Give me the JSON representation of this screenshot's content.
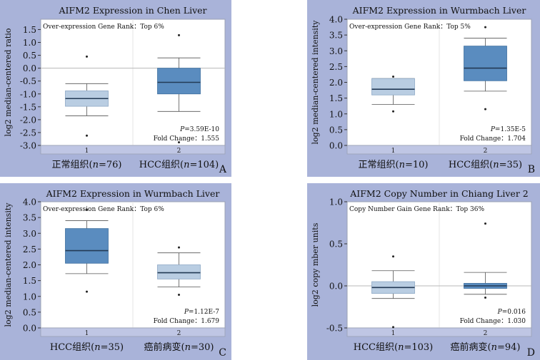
{
  "figure": {
    "colors": {
      "panel_bg": "#a9b3d9",
      "plot_bg": "#ffffff",
      "frame": "#9aa0b4",
      "axis_band": "#bfc6e4",
      "box_light": "#b9cde2",
      "box_dark": "#5a8cbf",
      "median": "#233a55",
      "zero_line": "#b8b8b8"
    }
  },
  "chart_data": [
    {
      "panel_letter": "A",
      "type": "box",
      "title": "AIFM2 Expression in Chen Liver",
      "annotation": "Over-expression Gene Rank：Top 6%",
      "ylabel": "log2 median-centered ratio",
      "ylim": [
        -3.0,
        1.9
      ],
      "yticks": [
        -3.0,
        -2.5,
        -2.0,
        -1.5,
        -1.0,
        -0.5,
        0.0,
        0.5,
        1.0,
        1.5
      ],
      "ytick_labels": [
        "-3.0",
        "-2.5",
        "-2.0",
        "-1.5",
        "-1.0",
        "-0.5",
        "0.0",
        "0.5",
        "1.0",
        "1.5"
      ],
      "zero_line": true,
      "p_text": "P=3.59E-10",
      "fold_text": "Fold Change：1.555",
      "categories": [
        {
          "index_label": "1",
          "label": "正常组织(n=76)",
          "tone": "light",
          "whisker_low": -1.85,
          "q1": -1.48,
          "median": -1.18,
          "q3": -0.88,
          "whisker_high": -0.6,
          "outliers": [
            0.45,
            -2.62
          ]
        },
        {
          "index_label": "2",
          "label": "HCC组织(n=104)",
          "tone": "dark",
          "whisker_low": -1.68,
          "q1": -1.0,
          "median": -0.55,
          "q3": 0.0,
          "whisker_high": 0.4,
          "outliers": [
            1.28,
            -2.88
          ]
        }
      ]
    },
    {
      "panel_letter": "B",
      "type": "box",
      "title": "AIFM2 Expression in Wurmbach Liver",
      "annotation": "Over-expression Gene Rank：Top 5%",
      "ylabel": "log2 median-centered intensity",
      "ylim": [
        0.0,
        4.0
      ],
      "yticks": [
        0.0,
        0.5,
        1.0,
        1.5,
        2.0,
        2.5,
        3.0,
        3.5,
        4.0
      ],
      "ytick_labels": [
        "0.0",
        "0.5",
        "1.0",
        "1.5",
        "2.0",
        "2.5",
        "3.0",
        "3.5",
        "4.0"
      ],
      "zero_line": false,
      "p_text": "P=1.35E-5",
      "fold_text": "Fold Change：1.704",
      "categories": [
        {
          "index_label": "1",
          "label": "正常组织(n=10)",
          "tone": "light",
          "whisker_low": 1.3,
          "q1": 1.6,
          "median": 1.78,
          "q3": 2.12,
          "whisker_high": 2.12,
          "outliers": [
            2.18,
            1.08
          ]
        },
        {
          "index_label": "2",
          "label": "HCC组织(n=35)",
          "tone": "dark",
          "whisker_low": 1.72,
          "q1": 2.05,
          "median": 2.45,
          "q3": 3.15,
          "whisker_high": 3.4,
          "outliers": [
            3.75,
            1.15
          ]
        }
      ]
    },
    {
      "panel_letter": "C",
      "type": "box",
      "title": "AIFM2 Expression in Wurmbach Liver",
      "annotation": "Over-expression Gene Rank：Top 6%",
      "ylabel": "log2 median-centered intensity",
      "ylim": [
        0.0,
        4.0
      ],
      "yticks": [
        0.0,
        0.5,
        1.0,
        1.5,
        2.0,
        2.5,
        3.0,
        3.5,
        4.0
      ],
      "ytick_labels": [
        "0.0",
        "0.5",
        "1.0",
        "1.5",
        "2.0",
        "2.5",
        "3.0",
        "3.5",
        "4.0"
      ],
      "zero_line": false,
      "p_text": "P=1.12E-7",
      "fold_text": "Fold Change：1.679",
      "categories": [
        {
          "index_label": "1",
          "label": "HCC组织(n=35)",
          "tone": "dark",
          "whisker_low": 1.72,
          "q1": 2.05,
          "median": 2.45,
          "q3": 3.15,
          "whisker_high": 3.4,
          "outliers": [
            3.75,
            1.15
          ]
        },
        {
          "index_label": "2",
          "label": "癌前病变(n=30)",
          "tone": "light",
          "whisker_low": 1.3,
          "q1": 1.55,
          "median": 1.75,
          "q3": 2.0,
          "whisker_high": 2.38,
          "outliers": [
            2.55,
            1.05
          ]
        }
      ]
    },
    {
      "panel_letter": "D",
      "type": "box",
      "title": "AIFM2 Copy Number in Chiang Liver 2",
      "annotation": "Copy Number Gain Gene Rank：Top 36%",
      "ylabel": "log2 copy mber units",
      "ylim": [
        -0.5,
        1.0
      ],
      "yticks": [
        -0.5,
        0.0,
        0.5,
        1.0
      ],
      "ytick_labels": [
        "-0.5",
        "0.0",
        "0.5",
        "1.0"
      ],
      "zero_line": true,
      "p_text": "P=0.016",
      "fold_text": "Fold Change：1.030",
      "categories": [
        {
          "index_label": "1",
          "label": "HCC组织(n=103)",
          "tone": "light",
          "whisker_low": -0.15,
          "q1": -0.09,
          "median": -0.02,
          "q3": 0.05,
          "whisker_high": 0.18,
          "outliers": [
            0.35,
            -0.49
          ]
        },
        {
          "index_label": "2",
          "label": "癌前病变(n=94)",
          "tone": "dark",
          "whisker_low": -0.1,
          "q1": -0.03,
          "median": 0.0,
          "q3": 0.03,
          "whisker_high": 0.16,
          "outliers": [
            0.74,
            -0.14
          ]
        }
      ]
    }
  ]
}
